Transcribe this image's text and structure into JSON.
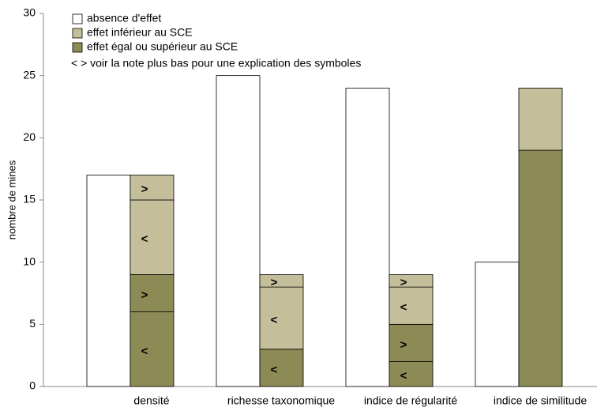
{
  "chart_data": {
    "type": "grouped-stacked-bar",
    "y_label": "nombre de mines",
    "note": "< > voir la note plus bas pour une explication des symboles",
    "categories": [
      "densité",
      "richesse taxonomique",
      "indice de régularité",
      "indice de similitude"
    ],
    "ylim": [
      0,
      30
    ],
    "yticks": [
      0,
      5,
      10,
      15,
      20,
      25,
      30
    ],
    "series": [
      {
        "name": "absence d'effet",
        "color": "#ffffff",
        "values": [
          17,
          25,
          24,
          10
        ]
      },
      {
        "name": "effet inférieur au SCE",
        "color": "#c4bf9a",
        "parts": [
          {
            "symbol": "<",
            "values": [
              6,
              5,
              3,
              null
            ]
          },
          {
            "symbol": ">",
            "values": [
              2,
              1,
              1,
              null
            ]
          },
          {
            "values": [
              null,
              null,
              null,
              5
            ]
          }
        ]
      },
      {
        "name": "effet égal ou supérieur au SCE",
        "color": "#8c8a55",
        "parts": [
          {
            "symbol": "<",
            "values": [
              6,
              3,
              2,
              null
            ]
          },
          {
            "symbol": ">",
            "values": [
              3,
              null,
              3,
              null
            ]
          },
          {
            "values": [
              null,
              null,
              null,
              19
            ]
          }
        ]
      }
    ]
  }
}
